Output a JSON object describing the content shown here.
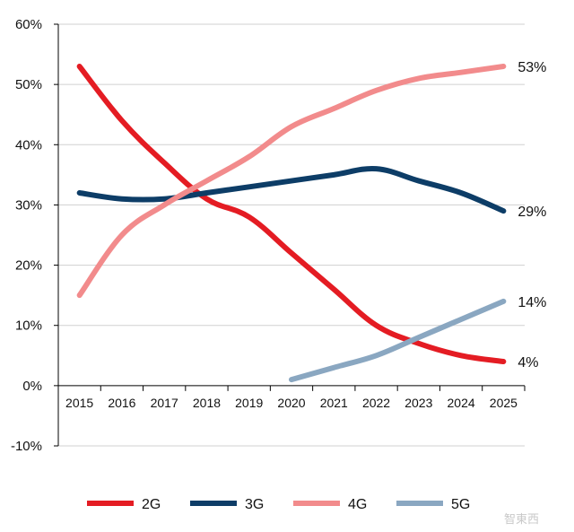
{
  "chart_data": {
    "type": "line",
    "title": "",
    "xlabel": "",
    "ylabel": "",
    "x": [
      "2015",
      "2016",
      "2017",
      "2018",
      "2019",
      "2020",
      "2021",
      "2022",
      "2023",
      "2024",
      "2025"
    ],
    "ylim": [
      -0.1,
      0.6
    ],
    "yticks": [
      "-10%",
      "0%",
      "10%",
      "20%",
      "30%",
      "40%",
      "50%",
      "60%"
    ],
    "grid": "horizontal",
    "legend": "bottom",
    "series": [
      {
        "name": "2G",
        "color": "#e41c23",
        "values": [
          0.53,
          0.44,
          0.37,
          0.31,
          0.28,
          0.22,
          0.16,
          0.1,
          0.07,
          0.05,
          0.04
        ],
        "end_label": "4%"
      },
      {
        "name": "3G",
        "color": "#0d3d67",
        "values": [
          0.32,
          0.31,
          0.31,
          0.32,
          0.33,
          0.34,
          0.35,
          0.36,
          0.34,
          0.32,
          0.29
        ],
        "end_label": "29%"
      },
      {
        "name": "4G",
        "color": "#f28b8c",
        "values": [
          0.15,
          0.25,
          0.3,
          0.34,
          0.38,
          0.43,
          0.46,
          0.49,
          0.51,
          0.52,
          0.53
        ],
        "end_label": "53%"
      },
      {
        "name": "5G",
        "color": "#8aa7c1",
        "values": [
          null,
          null,
          null,
          null,
          null,
          0.01,
          0.03,
          0.05,
          0.08,
          0.11,
          0.14
        ],
        "end_label": "14%"
      }
    ]
  },
  "watermark": "智東西"
}
